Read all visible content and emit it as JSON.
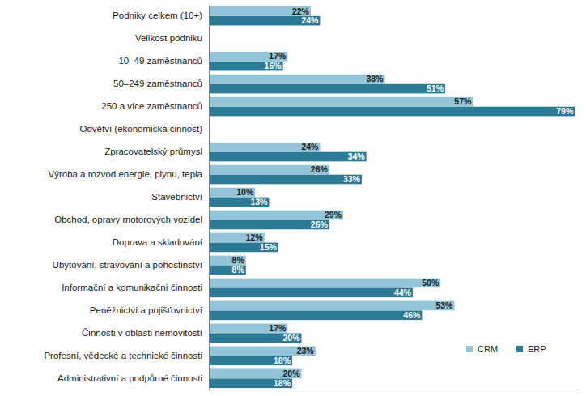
{
  "chart_data": {
    "type": "bar",
    "orientation": "horizontal",
    "categories": [
      "Podniky celkem (10+)",
      "Velikost podniku",
      "10–49 zaměstnanců",
      "50–249 zaměstnanců",
      "250 a více zaměstnanců",
      "Odvětví (ekonomická činnost)",
      "Zpracovatelský průmysl",
      "Výroba a rozvod energie, plynu, tepla",
      "Stavebnictví",
      "Obchod, opravy motorových vozidel",
      "Doprava a skladování",
      "Ubytování, stravování a pohostinství",
      "Informační a komunikační činnosti",
      "Peněžnictví a pojišťovnictví",
      "Činnosti v oblasti nemovitostí",
      "Profesní, vědecké a technické činnosti",
      "Administrativní a podpůrné činnosti"
    ],
    "series": [
      {
        "name": "CRM",
        "color": "#93c4d8",
        "values": [
          22,
          null,
          17,
          38,
          57,
          null,
          24,
          26,
          10,
          29,
          12,
          8,
          50,
          53,
          17,
          23,
          20
        ],
        "value_labels": [
          "22%",
          null,
          "17%",
          "38%",
          "57%",
          null,
          "24%",
          "26%",
          "10%",
          "29%",
          "12%",
          "8%",
          "50%",
          "53%",
          "17%",
          "23%",
          "20%"
        ]
      },
      {
        "name": "ERP",
        "color": "#2b7b96",
        "values": [
          24,
          null,
          16,
          51,
          79,
          null,
          34,
          33,
          13,
          26,
          15,
          8,
          44,
          46,
          20,
          18,
          18
        ],
        "value_labels": [
          "24%",
          null,
          "16%",
          "51%",
          "79%",
          null,
          "34%",
          "33%",
          "13%",
          "26%",
          "15%",
          "8%",
          "44%",
          "46%",
          "20%",
          "18%",
          "18%"
        ]
      }
    ],
    "xlim": [
      0,
      80
    ],
    "data_labels": true,
    "tick_labels": "y",
    "grid": false,
    "legend": "lower right"
  }
}
